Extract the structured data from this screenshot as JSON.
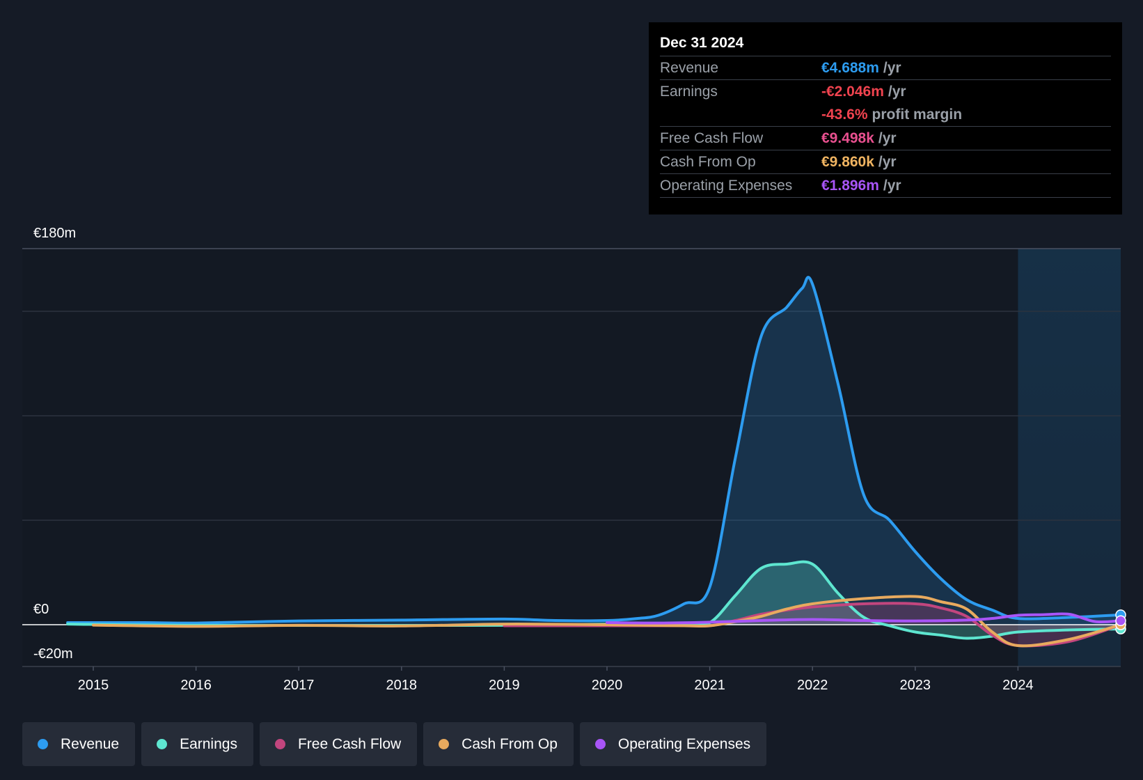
{
  "tooltip": {
    "date": "Dec 31 2024",
    "rows": [
      {
        "label": "Revenue",
        "value": "€4.688m",
        "unit": "/yr",
        "color": "#2d9cf0"
      },
      {
        "label": "Earnings",
        "value": "-€2.046m",
        "unit": "/yr",
        "color": "#f0434f"
      },
      {
        "label": "",
        "value": "-43.6%",
        "unit": "profit margin",
        "color": "#f0434f"
      },
      {
        "label": "Free Cash Flow",
        "value": "€9.498k",
        "unit": "/yr",
        "color": "#e8508f"
      },
      {
        "label": "Cash From Op",
        "value": "€9.860k",
        "unit": "/yr",
        "color": "#f0b461"
      },
      {
        "label": "Operating Expenses",
        "value": "€1.896m",
        "unit": "/yr",
        "color": "#a855f7"
      }
    ]
  },
  "legend": [
    {
      "label": "Revenue",
      "color": "#2d9cf0"
    },
    {
      "label": "Earnings",
      "color": "#5ee6d0"
    },
    {
      "label": "Free Cash Flow",
      "color": "#c2467e"
    },
    {
      "label": "Cash From Op",
      "color": "#e8aa5e"
    },
    {
      "label": "Operating Expenses",
      "color": "#a855f7"
    }
  ],
  "chart_data": {
    "type": "area",
    "title": "",
    "xlabel": "",
    "ylabel": "",
    "ylim": [
      -20,
      180
    ],
    "xlim": [
      2014.68,
      2025.0
    ],
    "y_tick_labels": [
      {
        "value": 180,
        "label": "€180m"
      },
      {
        "value": 0,
        "label": "€0"
      },
      {
        "value": -20,
        "label": "-€20m"
      }
    ],
    "gridlines": [
      180,
      150,
      100,
      50,
      0
    ],
    "x_ticks": [
      2015,
      2016,
      2017,
      2018,
      2019,
      2020,
      2021,
      2022,
      2023,
      2024
    ],
    "x_tick_labels": [
      "2015",
      "2016",
      "2017",
      "2018",
      "2019",
      "2020",
      "2021",
      "2022",
      "2023",
      "2024"
    ],
    "forecast_shade_start": 2024.0,
    "series": [
      {
        "name": "Revenue",
        "color": "#2d9cf0",
        "fill": true,
        "x": [
          2014.75,
          2015.5,
          2016.0,
          2017.0,
          2018.0,
          2019.0,
          2019.5,
          2020.0,
          2020.3,
          2020.5,
          2020.75,
          2021.0,
          2021.25,
          2021.5,
          2021.75,
          2021.9,
          2022.0,
          2022.25,
          2022.5,
          2022.75,
          2023.0,
          2023.25,
          2023.5,
          2023.75,
          2024.0,
          2024.5,
          2025.0
        ],
        "y": [
          1.0,
          1.0,
          0.8,
          1.8,
          2.2,
          2.7,
          2.0,
          2.0,
          3.0,
          4.5,
          10.0,
          18.0,
          80.0,
          138.0,
          152.0,
          161.0,
          163.0,
          115.0,
          62.0,
          50.0,
          35.0,
          22.0,
          12.0,
          7.0,
          3.0,
          3.5,
          4.688
        ]
      },
      {
        "name": "Earnings",
        "color": "#5ee6d0",
        "fill": true,
        "x": [
          2014.75,
          2016.0,
          2019.0,
          2020.0,
          2020.75,
          2021.0,
          2021.25,
          2021.5,
          2021.75,
          2022.0,
          2022.25,
          2022.5,
          2022.75,
          2023.0,
          2023.25,
          2023.5,
          2023.75,
          2024.0,
          2024.5,
          2025.0
        ],
        "y": [
          0.3,
          -0.3,
          -0.3,
          0.3,
          0.5,
          1.0,
          14.0,
          27.0,
          29.0,
          29.0,
          15.0,
          3.5,
          -0.5,
          -3.5,
          -5.0,
          -6.5,
          -5.5,
          -3.5,
          -2.5,
          -2.046
        ]
      },
      {
        "name": "Free Cash Flow",
        "color": "#c2467e",
        "fill": true,
        "x": [
          2019.0,
          2020.0,
          2020.75,
          2021.0,
          2021.25,
          2021.5,
          2021.75,
          2022.0,
          2022.5,
          2023.0,
          2023.25,
          2023.5,
          2023.75,
          2024.0,
          2024.5,
          2025.0
        ],
        "y": [
          -0.5,
          -0.5,
          -0.5,
          -0.5,
          2.0,
          5.0,
          7.0,
          8.5,
          10.0,
          10.0,
          8.0,
          4.0,
          -5.0,
          -10.0,
          -8.0,
          0.0095
        ]
      },
      {
        "name": "Cash From Op",
        "color": "#e8aa5e",
        "fill": false,
        "x": [
          2015.0,
          2016.0,
          2017.0,
          2018.0,
          2019.0,
          2020.0,
          2020.75,
          2021.0,
          2021.25,
          2021.5,
          2021.75,
          2022.0,
          2022.5,
          2023.0,
          2023.25,
          2023.5,
          2023.75,
          2024.0,
          2024.5,
          2025.0
        ],
        "y": [
          -0.2,
          -0.8,
          -0.3,
          -0.6,
          0.3,
          0.0,
          -0.5,
          -0.5,
          1.5,
          4.0,
          7.5,
          10.0,
          12.5,
          13.5,
          11.0,
          7.5,
          -3.5,
          -10.0,
          -7.0,
          0.0099
        ]
      },
      {
        "name": "Operating Expenses",
        "color": "#a855f7",
        "fill": false,
        "x": [
          2020.0,
          2020.5,
          2021.0,
          2021.5,
          2022.0,
          2022.5,
          2023.0,
          2023.5,
          2023.75,
          2024.0,
          2024.25,
          2024.5,
          2024.75,
          2025.0
        ],
        "y": [
          1.0,
          0.8,
          1.2,
          2.0,
          2.5,
          2.0,
          1.8,
          2.2,
          3.0,
          4.5,
          4.8,
          5.0,
          1.5,
          1.896
        ]
      }
    ]
  }
}
